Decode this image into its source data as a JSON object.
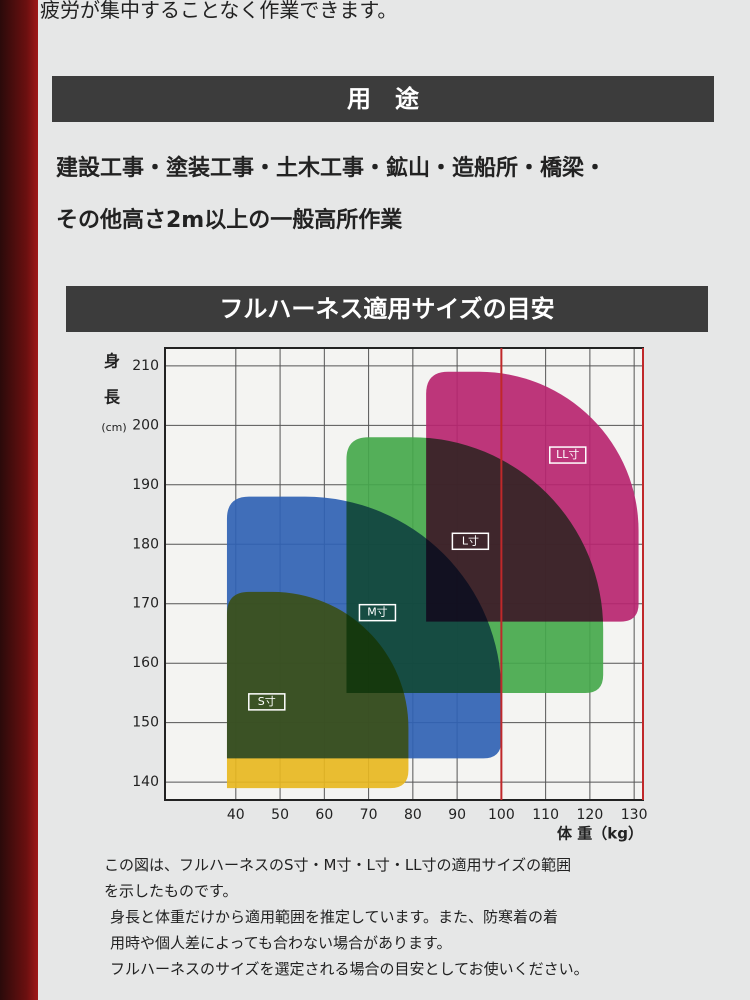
{
  "top_text": "疲労が集中することなく作業できます。",
  "usage": {
    "header": "用　途",
    "lines": [
      "建設工事・塗装工事・土木工事・鉱山・造船所・橋梁・",
      "その他高さ2m以上の一般高所作業"
    ]
  },
  "size_section": {
    "header": "フルハーネス適用サイズの目安"
  },
  "chart_data": {
    "type": "region",
    "y_label": [
      "身",
      "長",
      "(cm)"
    ],
    "x_label": "体 重（kg）",
    "xlim": [
      24,
      132
    ],
    "ylim": [
      137,
      213
    ],
    "xticks": [
      40,
      50,
      60,
      70,
      80,
      90,
      100,
      110,
      120,
      130
    ],
    "yticks": [
      140,
      150,
      160,
      170,
      180,
      190,
      200,
      210
    ],
    "grid": true,
    "highlight_x": 100,
    "highlight_color": "#c0282a",
    "regions": [
      {
        "name": "S寸",
        "color": "#e8b820",
        "x": [
          38,
          79
        ],
        "y": [
          139,
          172
        ]
      },
      {
        "name": "M寸",
        "color": "#2f62b4",
        "x": [
          38,
          100
        ],
        "y": [
          144,
          188
        ]
      },
      {
        "name": "L寸",
        "color": "#45a84c",
        "x": [
          65,
          123
        ],
        "y": [
          155,
          198
        ]
      },
      {
        "name": "LL寸",
        "color": "#b82470",
        "x": [
          83,
          131
        ],
        "y": [
          167,
          209
        ]
      }
    ]
  },
  "notes": [
    "この図は、フルハーネスのS寸・M寸・L寸・LL寸の適用サイズの範囲",
    "を示したものです。",
    "身長と体重だけから適用範囲を推定しています。また、防寒着の着",
    "用時や個人差によっても合わない場合があります。",
    "フルハーネスのサイズを選定される場合の目安としてお使いください。"
  ]
}
